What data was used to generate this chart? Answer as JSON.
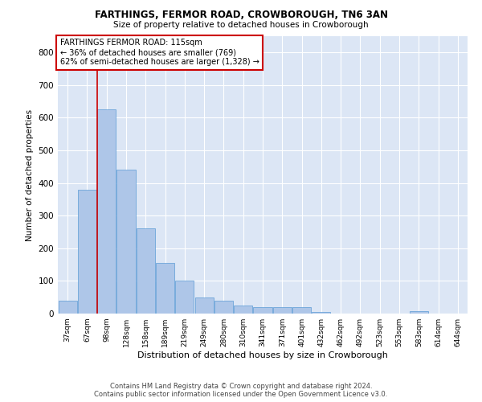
{
  "title1": "FARTHINGS, FERMOR ROAD, CROWBOROUGH, TN6 3AN",
  "title2": "Size of property relative to detached houses in Crowborough",
  "xlabel": "Distribution of detached houses by size in Crowborough",
  "ylabel": "Number of detached properties",
  "bar_labels": [
    "37sqm",
    "67sqm",
    "98sqm",
    "128sqm",
    "158sqm",
    "189sqm",
    "219sqm",
    "249sqm",
    "280sqm",
    "310sqm",
    "341sqm",
    "371sqm",
    "401sqm",
    "432sqm",
    "462sqm",
    "492sqm",
    "523sqm",
    "553sqm",
    "583sqm",
    "614sqm",
    "644sqm"
  ],
  "bar_values": [
    40,
    380,
    625,
    440,
    260,
    155,
    100,
    50,
    40,
    25,
    20,
    20,
    20,
    5,
    0,
    0,
    0,
    0,
    8,
    0,
    0
  ],
  "bar_color": "#aec6e8",
  "bar_edgecolor": "#5b9bd5",
  "ylim": [
    0,
    850
  ],
  "yticks": [
    0,
    100,
    200,
    300,
    400,
    500,
    600,
    700,
    800
  ],
  "vline_color": "#cc0000",
  "annotation_text": "FARTHINGS FERMOR ROAD: 115sqm\n← 36% of detached houses are smaller (769)\n62% of semi-detached houses are larger (1,328) →",
  "annotation_box_color": "#cc0000",
  "bg_color": "#dce6f5",
  "footer1": "Contains HM Land Registry data © Crown copyright and database right 2024.",
  "footer2": "Contains public sector information licensed under the Open Government Licence v3.0.",
  "grid_color": "#ffffff"
}
